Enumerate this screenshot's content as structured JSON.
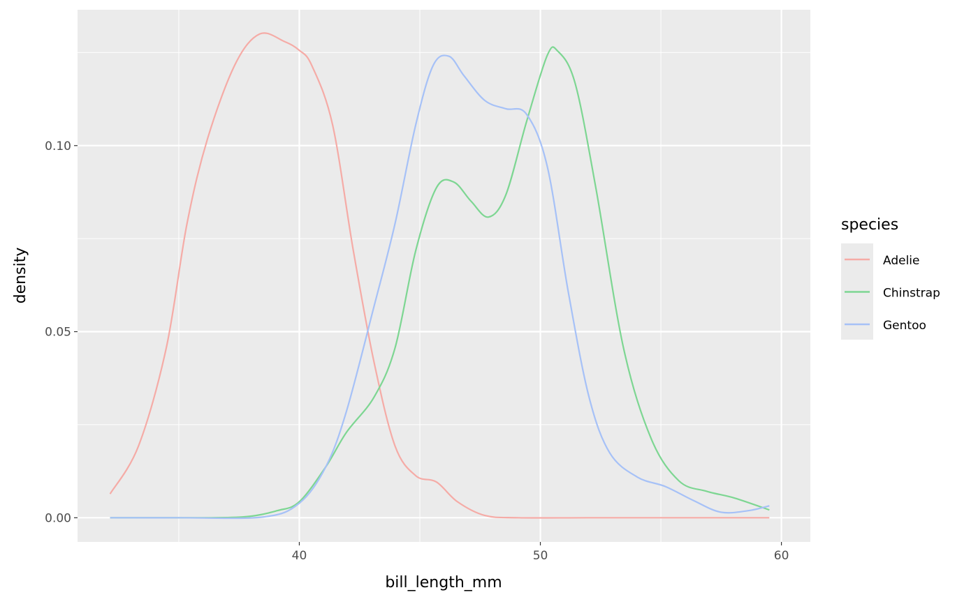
{
  "chart_data": {
    "type": "line",
    "title": "",
    "xlabel": "bill_length_mm",
    "ylabel": "density",
    "xlim": [
      30.8,
      61.2
    ],
    "ylim": [
      -0.0065,
      0.1365
    ],
    "x_ticks": [
      40,
      50,
      60
    ],
    "x_tick_labels": [
      "40",
      "50",
      "60"
    ],
    "x_minor": [
      35,
      45,
      55
    ],
    "y_ticks": [
      0,
      0.05,
      0.1
    ],
    "y_tick_labels": [
      "0.00",
      "0.05",
      "0.10"
    ],
    "y_minor": [
      0.025,
      0.075,
      0.125
    ],
    "grid": true,
    "panel_background": "#EBEBEB",
    "legend": {
      "title": "species",
      "placement": "right"
    },
    "series": [
      {
        "name": "Adelie",
        "color": "#F5ABA6",
        "x": [
          32.15,
          33.33,
          34.48,
          35.34,
          36.2,
          37.35,
          38.36,
          39.37,
          40,
          40.52,
          41.38,
          42.24,
          43.1,
          43.97,
          44.83,
          45.69,
          46.56,
          47.7,
          49.1,
          52,
          56,
          59.5
        ],
        "y": [
          0.0064,
          0.0193,
          0.0456,
          0.079,
          0.102,
          0.122,
          0.13,
          0.128,
          0.1256,
          0.1215,
          0.1056,
          0.0718,
          0.0418,
          0.0193,
          0.0113,
          0.0096,
          0.0043,
          0.0006,
          0,
          0,
          0,
          0
        ]
      },
      {
        "name": "Chinstrap",
        "color": "#7DD692",
        "x": [
          32.15,
          35,
          37.64,
          39.08,
          40,
          41.1,
          41.96,
          43.1,
          43.97,
          44.83,
          45.69,
          46.41,
          47.13,
          47.85,
          48.57,
          49.43,
          50.29,
          50.72,
          51.44,
          52.3,
          53.45,
          54.6,
          55.75,
          56.9,
          58.05,
          59.5
        ],
        "y": [
          0,
          0,
          0.0002,
          0.0019,
          0.0043,
          0.0137,
          0.023,
          0.0324,
          0.0456,
          0.0718,
          0.0887,
          0.0902,
          0.085,
          0.0808,
          0.0868,
          0.1065,
          0.1243,
          0.1254,
          0.1168,
          0.0887,
          0.0456,
          0.0212,
          0.0099,
          0.0071,
          0.0053,
          0.0021
        ]
      },
      {
        "name": "Gentoo",
        "color": "#A6C1F7",
        "x": [
          32.15,
          35,
          38.5,
          40,
          41.1,
          41.96,
          43.1,
          43.97,
          44.83,
          45.55,
          46.21,
          46.84,
          47.7,
          48.57,
          49.43,
          50.29,
          51.16,
          52.02,
          52.88,
          54.03,
          55.18,
          56.33,
          57.48,
          58.63,
          59.5
        ],
        "y": [
          0,
          0,
          0.0002,
          0.0039,
          0.0137,
          0.0287,
          0.0568,
          0.079,
          0.1056,
          0.1215,
          0.124,
          0.1187,
          0.1121,
          0.1099,
          0.1084,
          0.0943,
          0.0606,
          0.0324,
          0.0174,
          0.0109,
          0.0084,
          0.0047,
          0.0015,
          0.0019,
          0.0032
        ]
      }
    ]
  }
}
